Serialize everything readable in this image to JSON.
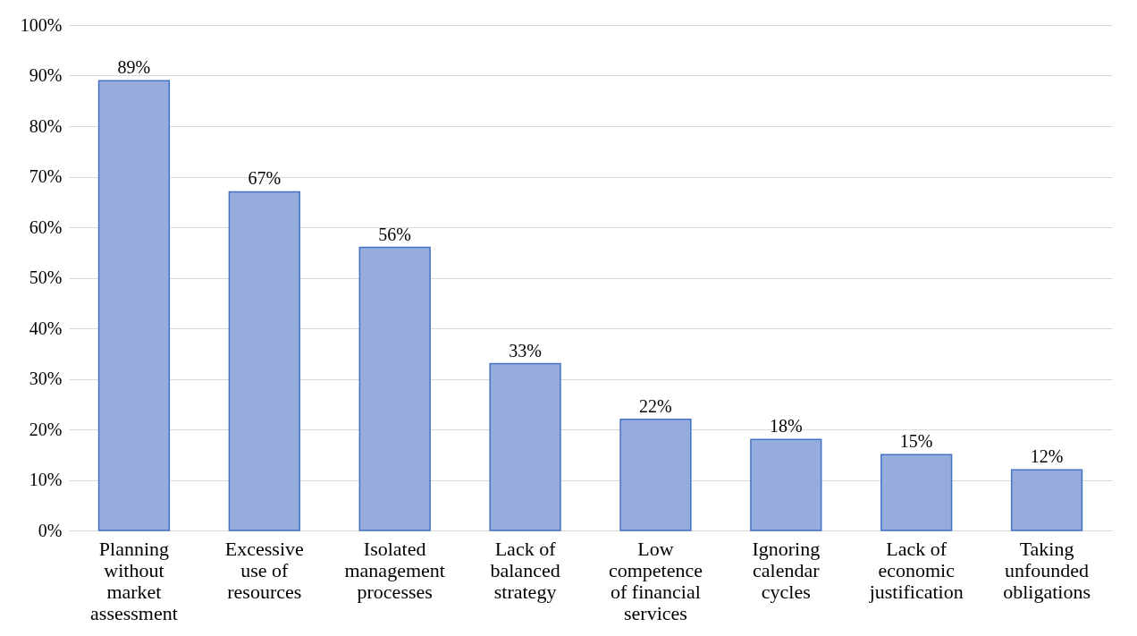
{
  "chart_data": {
    "type": "bar",
    "categories": [
      "Planning without market assessment",
      "Excessive use of resources",
      "Isolated management processes",
      "Lack of balanced strategy",
      "Low competence of financial services",
      "Ignoring calendar cycles",
      "Lack of economic justification",
      "Taking unfounded obligations"
    ],
    "values": [
      89,
      67,
      56,
      33,
      22,
      18,
      15,
      12
    ],
    "value_labels": [
      "89%",
      "67%",
      "56%",
      "33%",
      "22%",
      "18%",
      "15%",
      "12%"
    ],
    "color": "#95acdd",
    "ylim": [
      0,
      100
    ],
    "yticks": [
      {
        "value": 0,
        "label": "0%"
      },
      {
        "value": 10,
        "label": "10%"
      },
      {
        "value": 20,
        "label": "20%"
      },
      {
        "value": 30,
        "label": "30%"
      },
      {
        "value": 40,
        "label": "40%"
      },
      {
        "value": 50,
        "label": "50%"
      },
      {
        "value": 60,
        "label": "60%"
      },
      {
        "value": 70,
        "label": "70%"
      },
      {
        "value": 80,
        "label": "80%"
      },
      {
        "value": 90,
        "label": "90%"
      },
      {
        "value": 100,
        "label": "100%"
      }
    ],
    "grid": "y"
  }
}
